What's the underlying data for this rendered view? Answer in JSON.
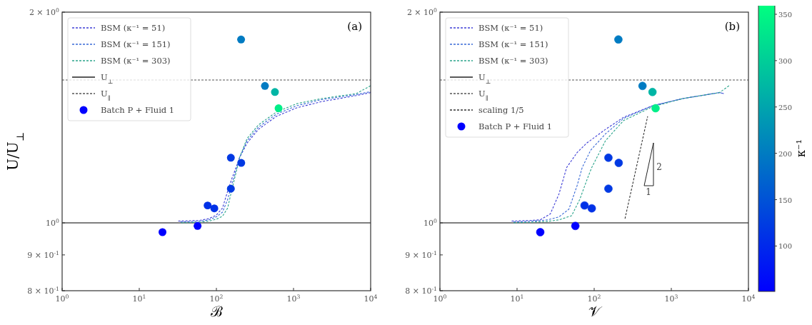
{
  "chart_data": [
    {
      "type": "line",
      "xlabel": "ℬ",
      "ylabel": "U/U$_{⊥}$",
      "log": "xy",
      "legend": "top left",
      "annotations": [
        "(a)"
      ],
      "xlim": [
        1,
        10000
      ],
      "ylim": [
        0.8,
        2
      ],
      "xticks": [
        {
          "value": 1,
          "label": "10$^{0}$"
        },
        {
          "value": 10,
          "label": "10$^{1}$"
        },
        {
          "value": 100,
          "label": "10$^{2}$"
        },
        {
          "value": 1000,
          "label": "10$^{3}$"
        },
        {
          "value": 10000,
          "label": "10$^{4}$"
        }
      ],
      "yticks": [
        {
          "value": 0.8,
          "label": "8 × 10$^{-1}$"
        },
        {
          "value": 0.9,
          "label": "9 × 10$^{-1}$"
        },
        {
          "value": 1,
          "label": "10$^{0}$"
        },
        {
          "value": 2,
          "label": "2 × 10$^{0}$"
        }
      ],
      "ref_lines": [
        {
          "axis": "y",
          "value": 1,
          "label": "U$_{⊥}$",
          "color": "#000000",
          "line_style": "solid"
        },
        {
          "axis": "y",
          "value": 1.6,
          "label": "U$_{∥}$",
          "color": "#555555",
          "line_style": "dashed"
        }
      ],
      "series": [
        {
          "name": "BSM (κ⁻¹ = 51)",
          "line_style": "dashed",
          "color": "#3f3fd6",
          "x": [
            32,
            60,
            80,
            100,
            120,
            140,
            160,
            180,
            200,
            250,
            350,
            600,
            1100,
            2300,
            6500,
            10000
          ],
          "values": [
            1.006,
            1.008,
            1.014,
            1.026,
            1.05,
            1.11,
            1.16,
            1.2,
            1.24,
            1.3,
            1.36,
            1.42,
            1.46,
            1.49,
            1.52,
            1.535
          ]
        },
        {
          "name": "BSM (κ⁻¹ = 151)",
          "line_style": "dashed",
          "color": "#3a6ad6",
          "x": [
            34,
            60,
            80,
            100,
            120,
            140,
            160,
            180,
            200,
            250,
            350,
            600,
            1100,
            2300,
            6500,
            10000
          ],
          "values": [
            1.003,
            1.005,
            1.01,
            1.02,
            1.036,
            1.08,
            1.14,
            1.19,
            1.24,
            1.31,
            1.37,
            1.43,
            1.47,
            1.5,
            1.525,
            1.54
          ]
        },
        {
          "name": "BSM (κ⁻¹ = 303)",
          "line_style": "dashed",
          "color": "#2ca58c",
          "x": [
            35,
            60,
            80,
            100,
            120,
            140,
            160,
            180,
            200,
            250,
            350,
            600,
            1100,
            2300,
            6500,
            10000
          ],
          "values": [
            1.0,
            1.002,
            1.006,
            1.012,
            1.022,
            1.05,
            1.12,
            1.18,
            1.24,
            1.32,
            1.38,
            1.44,
            1.48,
            1.505,
            1.53,
            1.57
          ]
        },
        {
          "name": "Batch P + Fluid 1",
          "type": "scatter",
          "marker": "circle",
          "x": [
            20,
            57,
            77,
            94,
            154,
            154,
            210,
            209,
            426,
            574,
            640
          ],
          "values": [
            0.97,
            0.99,
            1.059,
            1.049,
            1.119,
            1.239,
            1.218,
            1.828,
            1.569,
            1.538,
            1.458
          ],
          "colors": [
            "#0000ff",
            "#0000ff",
            "#0031e7",
            "#0031e7",
            "#0039e3",
            "#0039e3",
            "#0039e3",
            "#007bc2",
            "#007bc2",
            "#00b5a5",
            "#00ee88"
          ]
        }
      ]
    },
    {
      "type": "line",
      "xlabel": "𝒱",
      "log": "xy",
      "legend": "top left",
      "annotations": [
        "(b)",
        "2",
        "1"
      ],
      "xlim": [
        1,
        10000
      ],
      "ylim": [
        0.8,
        2
      ],
      "xticks": [
        {
          "value": 1,
          "label": "10$^{0}$"
        },
        {
          "value": 10,
          "label": "10$^{1}$"
        },
        {
          "value": 100,
          "label": "10$^{2}$"
        },
        {
          "value": 1000,
          "label": "10$^{3}$"
        },
        {
          "value": 10000,
          "label": "10$^{4}$"
        }
      ],
      "yticks": [
        {
          "value": 0.8,
          "label": "8 × 10$^{-1}$"
        },
        {
          "value": 0.9,
          "label": "9 × 10$^{-1}$"
        },
        {
          "value": 1,
          "label": "10$^{0}$"
        },
        {
          "value": 2,
          "label": "2 × 10$^{0}$"
        }
      ],
      "clim": [
        51,
        360
      ],
      "cticks": [
        100,
        150,
        200,
        250,
        300,
        350
      ],
      "clabel": "κ⁻¹",
      "ref_lines": [
        {
          "axis": "y",
          "value": 1,
          "label": "U$_{⊥}$",
          "color": "#000000",
          "line_style": "solid"
        },
        {
          "axis": "y",
          "value": 1.6,
          "label": "U$_{∥}$",
          "color": "#555555",
          "line_style": "dashed"
        }
      ],
      "series": [
        {
          "name": "BSM (κ⁻¹ = 51)",
          "line_style": "dashed",
          "color": "#3f3fd6",
          "x": [
            8.5,
            15,
            20,
            27,
            35,
            44,
            60,
            80,
            140,
            240,
            570,
            1400,
            4200,
            4800
          ],
          "values": [
            1.006,
            1.008,
            1.01,
            1.03,
            1.1,
            1.2,
            1.26,
            1.3,
            1.36,
            1.415,
            1.47,
            1.505,
            1.535,
            1.53
          ]
        },
        {
          "name": "BSM (κ⁻¹ = 151)",
          "line_style": "dashed",
          "color": "#3a6ad6",
          "x": [
            9,
            15,
            25,
            35,
            47,
            60,
            70,
            90,
            140,
            240,
            570,
            1400,
            4200,
            4800
          ],
          "values": [
            1.003,
            1.005,
            1.01,
            1.02,
            1.046,
            1.13,
            1.2,
            1.27,
            1.34,
            1.41,
            1.47,
            1.505,
            1.535,
            1.53
          ]
        },
        {
          "name": "BSM (κ⁻¹ = 303)",
          "line_style": "dashed",
          "color": "#2ca58c",
          "x": [
            9,
            15,
            25,
            35,
            51,
            65,
            80,
            93,
            140,
            240,
            570,
            1400,
            4200,
            5600
          ],
          "values": [
            1.0,
            1.002,
            1.005,
            1.01,
            1.024,
            1.08,
            1.15,
            1.2,
            1.31,
            1.4,
            1.465,
            1.505,
            1.535,
            1.57
          ]
        },
        {
          "name": "scaling 1/5",
          "line_style": "dashed",
          "color": "#333333",
          "x": [
            251,
            494
          ],
          "values": [
            1.014,
            1.42
          ]
        },
        {
          "name": "Batch P + Fluid 1",
          "type": "scatter",
          "marker": "circle",
          "x": [
            20,
            57,
            75,
            93,
            153,
            153,
            208,
            206,
            423,
            570,
            625
          ],
          "values": [
            0.97,
            0.99,
            1.059,
            1.049,
            1.119,
            1.239,
            1.218,
            1.828,
            1.569,
            1.538,
            1.458
          ],
          "cvalues": [
            51,
            51,
            110,
            110,
            120,
            120,
            120,
            200,
            200,
            270,
            340
          ],
          "colors": [
            "#0000ff",
            "#0000ff",
            "#0031e7",
            "#0031e7",
            "#0039e3",
            "#0039e3",
            "#0039e3",
            "#007bc2",
            "#007bc2",
            "#00b5a5",
            "#00ee88"
          ]
        }
      ]
    }
  ]
}
